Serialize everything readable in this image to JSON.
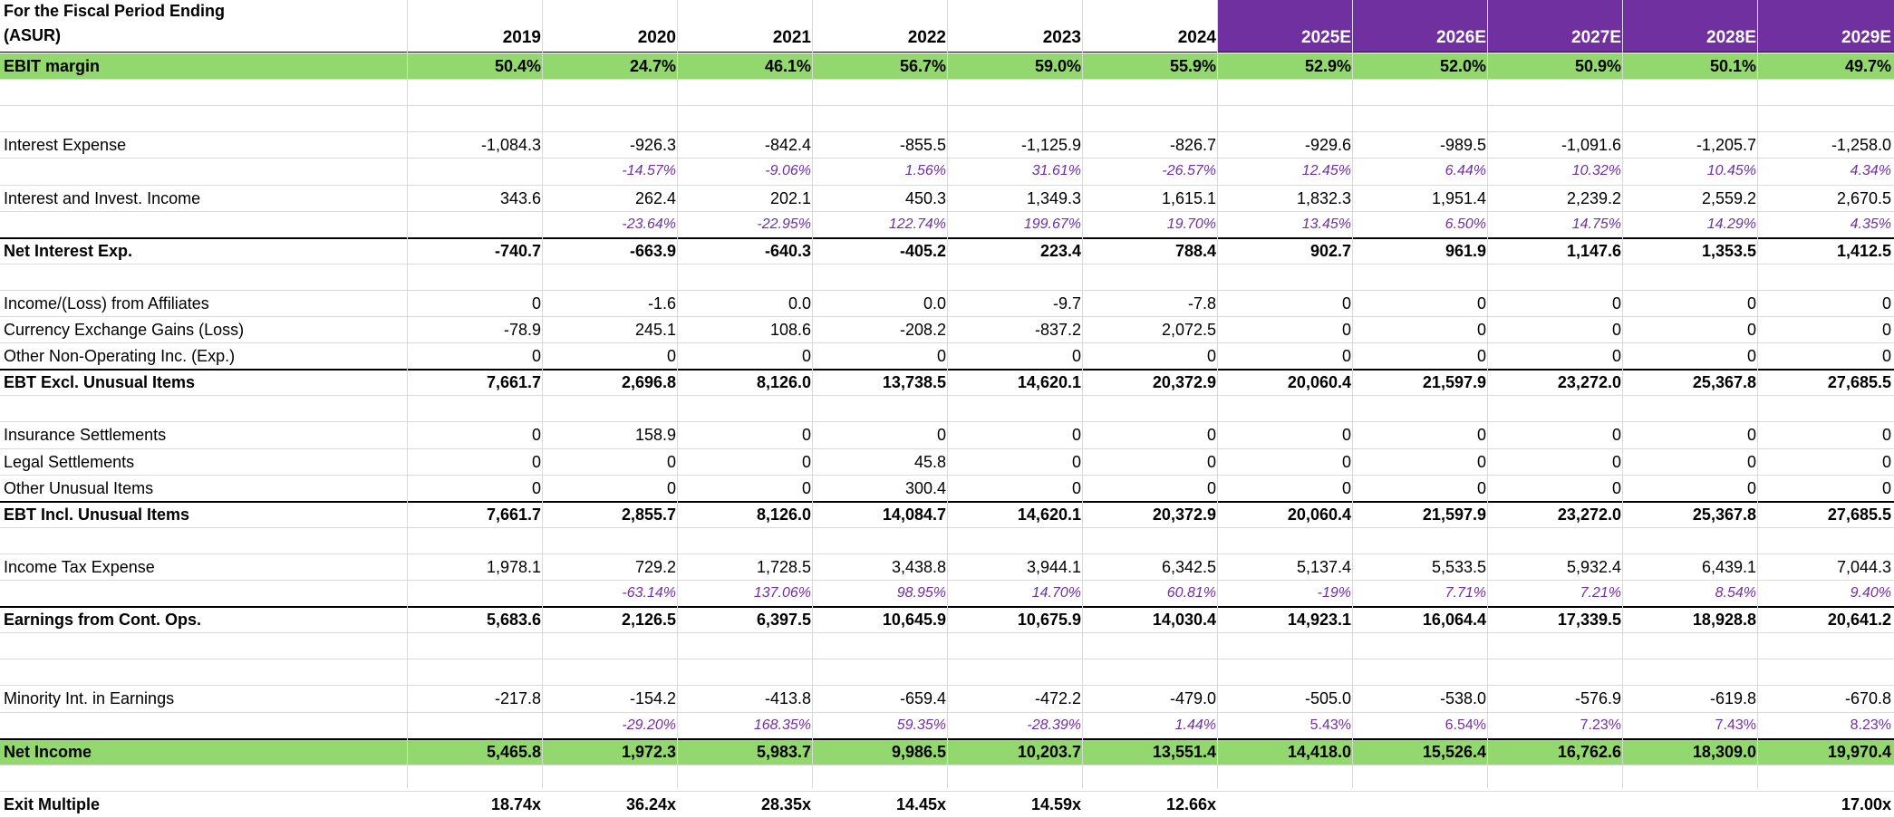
{
  "colors": {
    "highlight": "#92d86f",
    "estimate_header": "#7030a0",
    "growth_text": "#7030a0"
  },
  "header": {
    "title_line1": "For the Fiscal Period Ending",
    "title_line2": "(ASUR)",
    "years": [
      "2019",
      "2020",
      "2021",
      "2022",
      "2023",
      "2024",
      "2025E",
      "2026E",
      "2027E",
      "2028E",
      "2029E"
    ]
  },
  "rows": [
    {
      "type": "value",
      "style": "bold-highlight",
      "label": "EBIT margin",
      "values": [
        "50.4%",
        "24.7%",
        "46.1%",
        "56.7%",
        "59.0%",
        "55.9%",
        "52.9%",
        "52.0%",
        "50.9%",
        "50.1%",
        "49.7%"
      ]
    },
    {
      "type": "blank"
    },
    {
      "type": "blank"
    },
    {
      "type": "value",
      "style": "normal",
      "label": "Interest Expense",
      "values": [
        "-1,084.3",
        "-926.3",
        "-842.4",
        "-855.5",
        "-1,125.9",
        "-826.7",
        "-929.6",
        "-989.5",
        "-1,091.6",
        "-1,205.7",
        "-1,258.0"
      ]
    },
    {
      "type": "pct",
      "label": "",
      "values": [
        "",
        "-14.57%",
        "-9.06%",
        "1.56%",
        "31.61%",
        "-26.57%",
        "12.45%",
        "6.44%",
        "10.32%",
        "10.45%",
        "4.34%"
      ]
    },
    {
      "type": "value",
      "style": "normal",
      "label": "Interest and Invest. Income",
      "values": [
        "343.6",
        "262.4",
        "202.1",
        "450.3",
        "1,349.3",
        "1,615.1",
        "1,832.3",
        "1,951.4",
        "2,239.2",
        "2,559.2",
        "2,670.5"
      ]
    },
    {
      "type": "pct",
      "label": "",
      "values": [
        "",
        "-23.64%",
        "-22.95%",
        "122.74%",
        "199.67%",
        "19.70%",
        "13.45%",
        "6.50%",
        "14.75%",
        "14.29%",
        "4.35%"
      ]
    },
    {
      "type": "value",
      "style": "bold-top",
      "label": "Net Interest Exp.",
      "values": [
        "-740.7",
        "-663.9",
        "-640.3",
        "-405.2",
        "223.4",
        "788.4",
        "902.7",
        "961.9",
        "1,147.6",
        "1,353.5",
        "1,412.5"
      ]
    },
    {
      "type": "blank"
    },
    {
      "type": "value",
      "style": "normal",
      "label": "Income/(Loss) from Affiliates",
      "values": [
        "0",
        "-1.6",
        "0.0",
        "0.0",
        "-9.7",
        "-7.8",
        "0",
        "0",
        "0",
        "0",
        "0"
      ]
    },
    {
      "type": "value",
      "style": "normal",
      "label": "Currency Exchange Gains (Loss)",
      "values": [
        "-78.9",
        "245.1",
        "108.6",
        "-208.2",
        "-837.2",
        "2,072.5",
        "0",
        "0",
        "0",
        "0",
        "0"
      ]
    },
    {
      "type": "value",
      "style": "normal",
      "label": "Other Non-Operating Inc. (Exp.)",
      "values": [
        "0",
        "0",
        "0",
        "0",
        "0",
        "0",
        "0",
        "0",
        "0",
        "0",
        "0"
      ]
    },
    {
      "type": "value",
      "style": "bold-top",
      "label": "EBT Excl. Unusual Items",
      "values": [
        "7,661.7",
        "2,696.8",
        "8,126.0",
        "13,738.5",
        "14,620.1",
        "20,372.9",
        "20,060.4",
        "21,597.9",
        "23,272.0",
        "25,367.8",
        "27,685.5"
      ]
    },
    {
      "type": "blank"
    },
    {
      "type": "value",
      "style": "normal",
      "label": "Insurance Settlements",
      "values": [
        "0",
        "158.9",
        "0",
        "0",
        "0",
        "0",
        "0",
        "0",
        "0",
        "0",
        "0"
      ]
    },
    {
      "type": "value",
      "style": "normal",
      "label": "Legal Settlements",
      "values": [
        "0",
        "0",
        "0",
        "45.8",
        "0",
        "0",
        "0",
        "0",
        "0",
        "0",
        "0"
      ]
    },
    {
      "type": "value",
      "style": "normal",
      "label": "Other Unusual Items",
      "values": [
        "0",
        "0",
        "0",
        "300.4",
        "0",
        "0",
        "0",
        "0",
        "0",
        "0",
        "0"
      ]
    },
    {
      "type": "value",
      "style": "bold-top",
      "label": "EBT Incl. Unusual Items",
      "values": [
        "7,661.7",
        "2,855.7",
        "8,126.0",
        "14,084.7",
        "14,620.1",
        "20,372.9",
        "20,060.4",
        "21,597.9",
        "23,272.0",
        "25,367.8",
        "27,685.5"
      ]
    },
    {
      "type": "blank"
    },
    {
      "type": "value",
      "style": "normal",
      "label": "Income Tax Expense",
      "values": [
        "1,978.1",
        "729.2",
        "1,728.5",
        "3,438.8",
        "3,944.1",
        "6,342.5",
        "5,137.4",
        "5,533.5",
        "5,932.4",
        "6,439.1",
        "7,044.3"
      ]
    },
    {
      "type": "pct",
      "label": "",
      "values": [
        "",
        "-63.14%",
        "137.06%",
        "98.95%",
        "14.70%",
        "60.81%",
        "-19%",
        "7.71%",
        "7.21%",
        "8.54%",
        "9.40%"
      ]
    },
    {
      "type": "value",
      "style": "bold-top",
      "label": "Earnings from Cont. Ops.",
      "values": [
        "5,683.6",
        "2,126.5",
        "6,397.5",
        "10,645.9",
        "10,675.9",
        "14,030.4",
        "14,923.1",
        "16,064.4",
        "17,339.5",
        "18,928.8",
        "20,641.2"
      ]
    },
    {
      "type": "blank"
    },
    {
      "type": "blank"
    },
    {
      "type": "value",
      "style": "normal",
      "label": "Minority Int. in Earnings",
      "values": [
        "-217.8",
        "-154.2",
        "-413.8",
        "-659.4",
        "-472.2",
        "-479.0",
        "-505.0",
        "-538.0",
        "-576.9",
        "-619.8",
        "-670.8"
      ]
    },
    {
      "type": "pct-mixed",
      "label": "",
      "values": [
        "",
        "-29.20%",
        "168.35%",
        "59.35%",
        "-28.39%",
        "1.44%",
        "5.43%",
        "6.54%",
        "7.23%",
        "7.43%",
        "8.23%"
      ]
    },
    {
      "type": "value",
      "style": "bold-highlight-top",
      "label": "Net Income",
      "values": [
        "5,465.8",
        "1,972.3",
        "5,983.7",
        "9,986.5",
        "10,203.7",
        "13,551.4",
        "14,418.0",
        "15,526.4",
        "16,762.6",
        "18,309.0",
        "19,970.4"
      ]
    },
    {
      "type": "blank"
    },
    {
      "type": "value",
      "style": "bold",
      "label": "Exit Multiple",
      "values": [
        "18.74x",
        "36.24x",
        "28.35x",
        "14.45x",
        "14.59x",
        "12.66x",
        "",
        "",
        "",
        "",
        "17.00x"
      ]
    }
  ]
}
